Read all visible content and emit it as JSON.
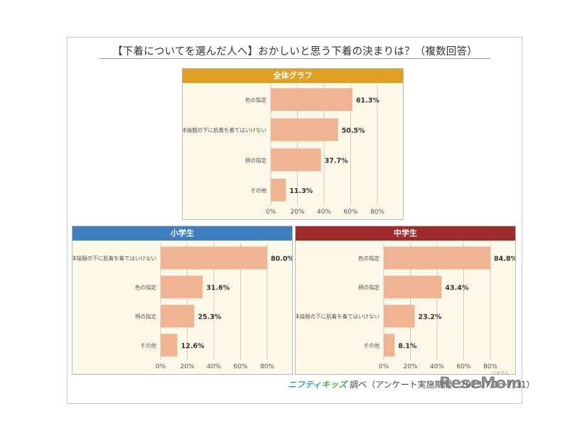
{
  "title": "【下着についてを選んだ人へ】おかしいと思う下着の決まりは？（複数回答）",
  "credit": {
    "brand1": "ニフティ",
    "brand2": "キッズ",
    "text": "調べ（アンケート実施期間：2023/7/1～7/31）"
  },
  "watermark": {
    "text": "ReseMom",
    "ruby": "リセマム"
  },
  "colors": {
    "overall_header": "#e0a022",
    "elementary_header": "#3d7fc1",
    "junior_header": "#9e2a2a",
    "bar": "#f0b493",
    "panel_bg": "#fdf9e8",
    "grid": "#cccccc",
    "label_text": "#555555",
    "value_text": "#333333"
  },
  "chart_data": [
    {
      "id": "overall",
      "type": "bar",
      "orientation": "horizontal",
      "title": "全体グラフ",
      "categories": [
        "色の指定",
        "体操服の下に肌着を着てはいけない",
        "柄の指定",
        "その他"
      ],
      "values": [
        61.3,
        50.5,
        37.7,
        11.3
      ],
      "value_labels": [
        "61.3%",
        "50.5%",
        "37.7%",
        "11.3%"
      ],
      "xlim": [
        0,
        80
      ],
      "ticks": [
        "0%",
        "20%",
        "40%",
        "60%",
        "80%"
      ],
      "grid": true
    },
    {
      "id": "elementary",
      "type": "bar",
      "orientation": "horizontal",
      "title": "小学生",
      "categories": [
        "体操服の下に肌着を着てはいけない",
        "色の指定",
        "柄の指定",
        "その他"
      ],
      "values": [
        80.0,
        31.6,
        25.3,
        12.6
      ],
      "value_labels": [
        "80.0%",
        "31.6%",
        "25.3%",
        "12.6%"
      ],
      "xlim": [
        0,
        80
      ],
      "ticks": [
        "0%",
        "20%",
        "40%",
        "60%",
        "80%"
      ],
      "grid": true
    },
    {
      "id": "junior",
      "type": "bar",
      "orientation": "horizontal",
      "title": "中学生",
      "categories": [
        "色の指定",
        "柄の指定",
        "体操服の下に肌着を着てはいけない",
        "その他"
      ],
      "values": [
        84.8,
        43.4,
        23.2,
        8.1
      ],
      "value_labels": [
        "84.8%",
        "43.4%",
        "23.2%",
        "8.1%"
      ],
      "xlim": [
        0,
        80
      ],
      "ticks": [
        "0%",
        "20%",
        "40%",
        "60%",
        "80%"
      ],
      "grid": true
    }
  ]
}
